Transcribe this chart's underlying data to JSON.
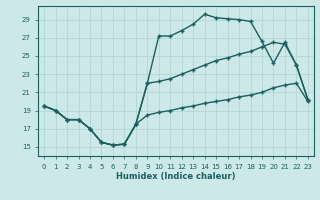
{
  "xlabel": "Humidex (Indice chaleur)",
  "bg_color": "#cce8e8",
  "grid_color": "#b8d8d8",
  "line_color": "#1a6060",
  "xlim": [
    -0.5,
    23.5
  ],
  "ylim": [
    14.0,
    30.5
  ],
  "xticks": [
    0,
    1,
    2,
    3,
    4,
    5,
    6,
    7,
    8,
    9,
    10,
    11,
    12,
    13,
    14,
    15,
    16,
    17,
    18,
    19,
    20,
    21,
    22,
    23
  ],
  "yticks": [
    15,
    17,
    19,
    21,
    23,
    25,
    27,
    29
  ],
  "line_dip_x": [
    0,
    1,
    2,
    3,
    4,
    5,
    6,
    7,
    8,
    9,
    10,
    11,
    12,
    13,
    14,
    15,
    16,
    17,
    18,
    19,
    20,
    21,
    22,
    23
  ],
  "line_dip_y": [
    19.5,
    19.0,
    18.0,
    18.0,
    17.0,
    15.5,
    15.2,
    15.3,
    17.5,
    18.5,
    18.8,
    19.0,
    19.3,
    19.5,
    19.8,
    20.0,
    20.2,
    20.5,
    20.7,
    21.0,
    21.5,
    21.8,
    22.0,
    20.0
  ],
  "line_top_x": [
    0,
    1,
    2,
    3,
    4,
    5,
    6,
    7,
    8,
    9,
    10,
    11,
    12,
    13,
    14,
    15,
    16,
    17,
    18,
    19,
    20,
    21,
    22,
    23
  ],
  "line_top_y": [
    19.5,
    19.0,
    18.0,
    18.0,
    17.0,
    15.5,
    15.2,
    15.3,
    17.5,
    22.0,
    27.2,
    27.2,
    27.8,
    28.5,
    29.6,
    29.2,
    29.1,
    29.0,
    28.8,
    26.6,
    24.2,
    26.5,
    24.0,
    20.2
  ],
  "line_diag_x": [
    0,
    1,
    2,
    3,
    4,
    5,
    6,
    7,
    8,
    9,
    10,
    11,
    12,
    13,
    14,
    15,
    16,
    17,
    18,
    19,
    20,
    21,
    22,
    23
  ],
  "line_diag_y": [
    19.5,
    19.0,
    18.0,
    18.0,
    17.0,
    15.5,
    15.2,
    15.3,
    17.5,
    22.0,
    22.2,
    22.5,
    23.0,
    23.5,
    24.0,
    24.5,
    24.8,
    25.2,
    25.5,
    26.0,
    26.5,
    26.3,
    24.0,
    20.2
  ]
}
